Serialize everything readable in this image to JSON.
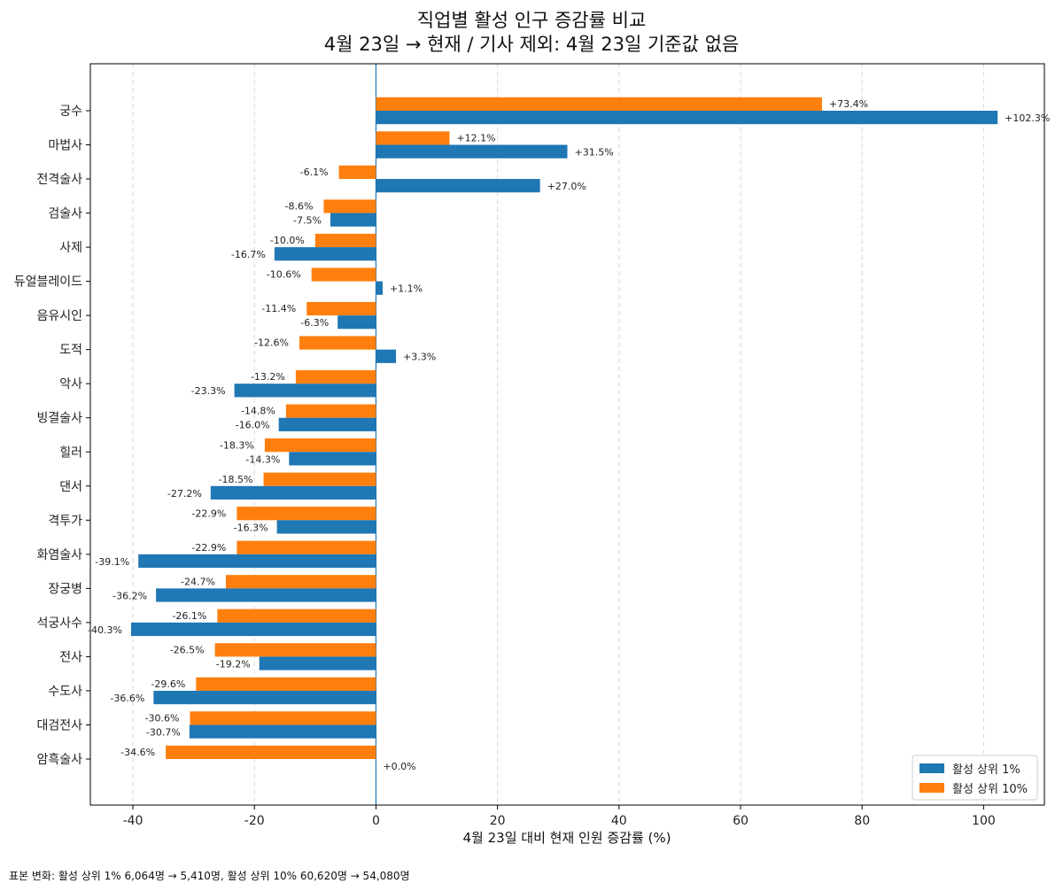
{
  "chart_data": {
    "type": "bar",
    "orientation": "horizontal",
    "title": [
      "직업별 활성 인구 증감률 비교",
      "4월 23일 → 현재 / 기사 제외: 4월 23일 기준값 없음"
    ],
    "xlabel": "4월 23일 대비 현재 인원 증감률 (%)",
    "ylabel": "",
    "xlim": [
      -47,
      110
    ],
    "xticks": [
      -40,
      -20,
      0,
      20,
      40,
      60,
      80,
      100
    ],
    "grid": "x-dashed",
    "legend_position": "bottom-right",
    "categories": [
      "궁수",
      "마법사",
      "전격술사",
      "검술사",
      "사제",
      "듀얼블레이드",
      "음유시인",
      "도적",
      "악사",
      "빙결술사",
      "힐러",
      "댄서",
      "격투가",
      "화염술사",
      "장궁병",
      "석궁사수",
      "전사",
      "수도사",
      "대검전사",
      "암흑술사"
    ],
    "series": [
      {
        "name": "활성 상위 1%",
        "color": "#1f77b4",
        "values": [
          102.3,
          31.5,
          27.0,
          -7.5,
          -16.7,
          1.1,
          -6.3,
          3.3,
          -23.3,
          -16.0,
          -14.3,
          -27.2,
          -16.3,
          -39.1,
          -36.2,
          -40.3,
          -19.2,
          -36.6,
          -30.7,
          0.0
        ],
        "labels": [
          "+102.3%",
          "+31.5%",
          "+27.0%",
          "-7.5%",
          "-16.7%",
          "+1.1%",
          "-6.3%",
          "+3.3%",
          "-23.3%",
          "-16.0%",
          "-14.3%",
          "-27.2%",
          "-16.3%",
          "-39.1%",
          "-36.2%",
          "-40.3%",
          "-19.2%",
          "-36.6%",
          "-30.7%",
          "+0.0%"
        ]
      },
      {
        "name": "활성 상위 10%",
        "color": "#ff7f0e",
        "values": [
          73.4,
          12.1,
          -6.1,
          -8.6,
          -10.0,
          -10.6,
          -11.4,
          -12.6,
          -13.2,
          -14.8,
          -18.3,
          -18.5,
          -22.9,
          -22.9,
          -24.7,
          -26.1,
          -26.5,
          -29.6,
          -30.6,
          -34.6
        ],
        "labels": [
          "+73.4%",
          "+12.1%",
          "-6.1%",
          "-8.6%",
          "-10.0%",
          "-10.6%",
          "-11.4%",
          "-12.6%",
          "-13.2%",
          "-14.8%",
          "-18.3%",
          "-18.5%",
          "-22.9%",
          "-22.9%",
          "-24.7%",
          "-26.1%",
          "-26.5%",
          "-29.6%",
          "-30.6%",
          "-34.6%"
        ]
      }
    ]
  },
  "footnote": "표본 변화: 활성 상위 1% 6,064명 → 5,410명, 활성 상위 10% 60,620명 → 54,080명"
}
